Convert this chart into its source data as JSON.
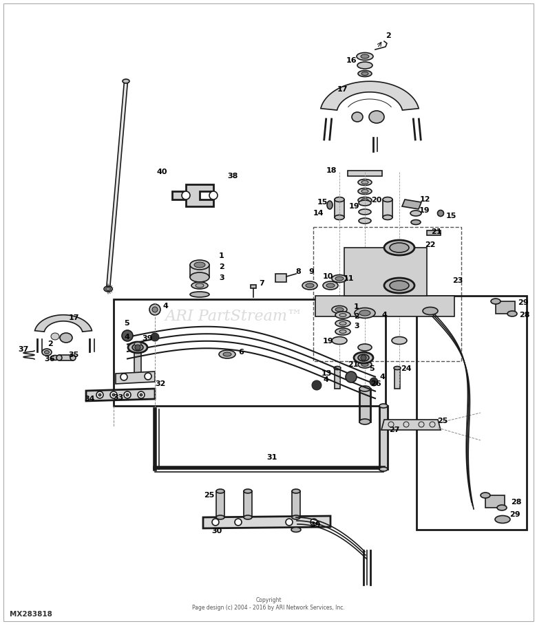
{
  "bg_color": "#ffffff",
  "line_color": "#1a1a1a",
  "label_color": "#000000",
  "watermark": "ARI PartStream™",
  "copyright": "Copyright\nPage design (c) 2004 - 2016 by ARI Network Services, Inc.",
  "part_number": "MX283818",
  "figsize": [
    7.8,
    9.1
  ],
  "dpi": 100
}
